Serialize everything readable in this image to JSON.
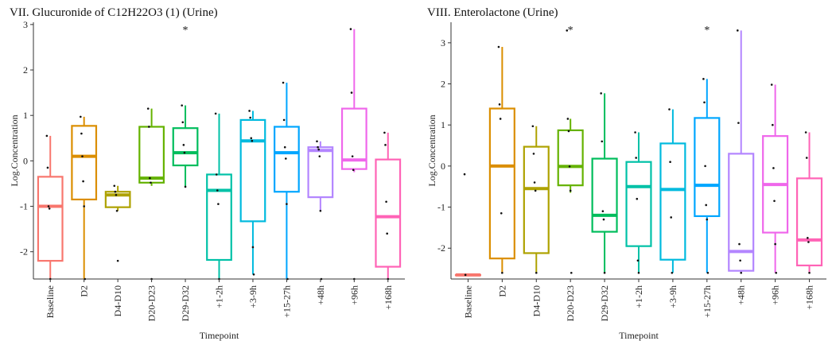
{
  "chart_data": [
    {
      "type": "box",
      "title": "VII. Glucuronide of C12H22O3 (1) (Urine)",
      "xlabel": "Timepoint",
      "ylabel": "Log.Concentration",
      "ylim": [
        -2.6,
        3.05
      ],
      "yticks": [
        3,
        2,
        1,
        0,
        -1,
        -2
      ],
      "ytick_labels": [
        "3",
        "2",
        "1",
        "0",
        "-1",
        "-2"
      ],
      "grid": false,
      "legend": "none",
      "categories": [
        "Baseline",
        "D2",
        "D4-D10",
        "D20-D23",
        "D29-D32",
        "+1-2h",
        "+3-9h",
        "+15-27h",
        "+48h",
        "+96h",
        "+168h"
      ],
      "colors": [
        "#F8766D",
        "#DB8E00",
        "#AEA200",
        "#64B200",
        "#00BD5C",
        "#00C1A7",
        "#00BADE",
        "#00A6FF",
        "#B385FF",
        "#EF67EB",
        "#FF63B6"
      ],
      "boxes": [
        {
          "q1": -2.2,
          "median": -1.0,
          "q3": -0.35,
          "min": -2.6,
          "max": 0.55
        },
        {
          "q1": -0.85,
          "median": 0.1,
          "q3": 0.77,
          "min": -2.6,
          "max": 0.97
        },
        {
          "q1": -1.02,
          "median": -0.75,
          "q3": -0.68,
          "min": -1.1,
          "max": -0.55
        },
        {
          "q1": -0.48,
          "median": -0.38,
          "q3": 0.75,
          "min": -0.55,
          "max": 1.15
        },
        {
          "q1": -0.1,
          "median": 0.18,
          "q3": 0.72,
          "min": -0.57,
          "max": 1.22
        },
        {
          "q1": -2.18,
          "median": -0.65,
          "q3": -0.3,
          "min": -2.6,
          "max": 1.04
        },
        {
          "q1": -1.33,
          "median": 0.44,
          "q3": 0.9,
          "min": -2.5,
          "max": 1.1
        },
        {
          "q1": -0.68,
          "median": 0.18,
          "q3": 0.75,
          "min": -2.6,
          "max": 1.72
        },
        {
          "q1": -0.8,
          "median": 0.23,
          "q3": 0.3,
          "min": -1.1,
          "max": 0.43
        },
        {
          "q1": -0.18,
          "median": 0.02,
          "q3": 1.15,
          "min": -0.25,
          "max": 2.9
        },
        {
          "q1": -2.33,
          "median": -1.23,
          "q3": 0.03,
          "min": -2.6,
          "max": 0.62
        }
      ],
      "points": [
        [
          0.55,
          -0.15,
          -1.0,
          -1.05,
          -2.6
        ],
        [
          0.97,
          0.6,
          0.1,
          -0.45,
          -1.0,
          -2.6
        ],
        [
          -0.55,
          -0.68,
          -0.75,
          -1.1,
          -2.2
        ],
        [
          1.15,
          0.75,
          -0.38,
          -0.48,
          -2.6
        ],
        [
          1.22,
          0.85,
          0.35,
          0.18,
          -0.57
        ],
        [
          1.04,
          -0.3,
          -0.65,
          -0.95,
          -2.6
        ],
        [
          1.1,
          0.95,
          0.5,
          0.44,
          -1.9,
          -2.5
        ],
        [
          1.72,
          0.9,
          0.3,
          0.05,
          -0.95,
          -2.6
        ],
        [
          0.43,
          0.3,
          0.25,
          0.1,
          -1.1,
          -2.6
        ],
        [
          2.9,
          1.5,
          0.1,
          -0.2,
          -2.6
        ],
        [
          0.62,
          0.35,
          -0.9,
          -1.6,
          -2.6
        ]
      ],
      "annotations": [
        {
          "category": "D29-D32",
          "text": "*"
        }
      ]
    },
    {
      "type": "box",
      "title": "VIII. Enterolactone (Urine)",
      "xlabel": "Timepoint",
      "ylabel": "Log.Concentration",
      "ylim": [
        -2.75,
        3.5
      ],
      "yticks": [
        3,
        2,
        1,
        0,
        -1,
        -2
      ],
      "ytick_labels": [
        "3",
        "2",
        "1",
        "0",
        "-1",
        "-2"
      ],
      "grid": false,
      "legend": "none",
      "categories": [
        "Baseline",
        "D2",
        "D4-D10",
        "D20-D23",
        "D29-D32",
        "+1-2h",
        "+3-9h",
        "+15-27h",
        "+48h",
        "+96h",
        "+168h"
      ],
      "colors": [
        "#F8766D",
        "#DB8E00",
        "#AEA200",
        "#64B200",
        "#00BD5C",
        "#00C1A7",
        "#00BADE",
        "#00A6FF",
        "#B385FF",
        "#EF67EB",
        "#FF63B6"
      ],
      "boxes": [
        {
          "q1": -2.65,
          "median": -2.65,
          "q3": -2.65,
          "min": -2.65,
          "max": -2.65
        },
        {
          "q1": -2.25,
          "median": 0.0,
          "q3": 1.4,
          "min": -2.6,
          "max": 2.9
        },
        {
          "q1": -2.12,
          "median": -0.55,
          "q3": 0.47,
          "min": -2.6,
          "max": 0.97
        },
        {
          "q1": -0.47,
          "median": -0.01,
          "q3": 0.87,
          "min": -0.65,
          "max": 1.15
        },
        {
          "q1": -1.6,
          "median": -1.2,
          "q3": 0.18,
          "min": -2.6,
          "max": 1.77
        },
        {
          "q1": -1.95,
          "median": -0.5,
          "q3": 0.1,
          "min": -2.6,
          "max": 0.82
        },
        {
          "q1": -2.28,
          "median": -0.57,
          "q3": 0.55,
          "min": -2.6,
          "max": 1.38
        },
        {
          "q1": -1.22,
          "median": -0.47,
          "q3": 1.17,
          "min": -2.6,
          "max": 2.12
        },
        {
          "q1": -2.55,
          "median": -2.08,
          "q3": 0.3,
          "min": -2.6,
          "max": 3.3
        },
        {
          "q1": -1.62,
          "median": -0.45,
          "q3": 0.73,
          "min": -2.6,
          "max": 1.98
        },
        {
          "q1": -2.42,
          "median": -1.8,
          "q3": -0.3,
          "min": -2.6,
          "max": 0.82
        }
      ],
      "points": [
        [
          -0.2,
          -2.65
        ],
        [
          2.9,
          1.5,
          1.15,
          -1.15,
          -2.6
        ],
        [
          0.97,
          0.3,
          -0.4,
          -0.6,
          -2.6
        ],
        [
          3.3,
          1.15,
          0.85,
          -0.01,
          -0.6,
          -2.6
        ],
        [
          1.77,
          0.6,
          -1.1,
          -1.3,
          -2.6
        ],
        [
          0.82,
          0.2,
          -0.8,
          -2.3,
          -2.6
        ],
        [
          1.38,
          0.1,
          -1.25,
          -2.6
        ],
        [
          2.12,
          1.55,
          0.0,
          -0.95,
          -1.3,
          -2.6
        ],
        [
          3.3,
          1.05,
          -1.9,
          -2.3,
          -2.6
        ],
        [
          1.98,
          1.0,
          -0.05,
          -0.85,
          -1.9,
          -2.6
        ],
        [
          0.82,
          0.2,
          -1.75,
          -1.85,
          -2.6
        ]
      ],
      "annotations": [
        {
          "category": "D20-D23",
          "text": "*"
        },
        {
          "category": "+15-27h",
          "text": "*"
        }
      ]
    }
  ]
}
